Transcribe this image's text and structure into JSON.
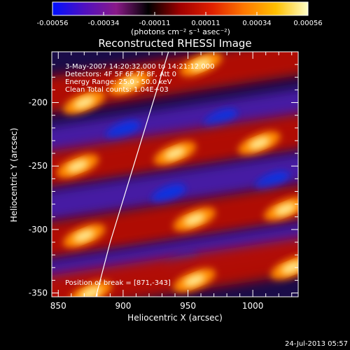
{
  "chart_data": {
    "type": "heatmap",
    "title": "Reconstructed RHESSI Image",
    "xlabel": "Heliocentric X (arcsec)",
    "ylabel": "Heliocentric Y (arcsec)",
    "xlim": [
      845,
      1035
    ],
    "ylim": [
      -353,
      -160
    ],
    "x_ticks": [
      850,
      900,
      950,
      1000
    ],
    "y_ticks": [
      -200,
      -250,
      -300,
      -350
    ],
    "colorbar": {
      "range": [
        -0.00056,
        0.00056
      ],
      "ticks": [
        "-0.00056",
        "-0.00034",
        "-0.00011",
        "0.00011",
        "0.00034",
        "0.00056"
      ],
      "unit_label": "(photons cm⁻² s⁻¹ asec⁻²)",
      "colormap": [
        "#0010ff",
        "#5010c0",
        "#8a1a88",
        "#000000",
        "#a00000",
        "#e02000",
        "#ff7800",
        "#ffc000",
        "#ffffc8"
      ]
    },
    "annotations": [
      "3-May-2007 14:20:32.000 to 14:21:12.000",
      "Detectors: 4F 5F 6F 7F 8F, Att 0",
      "Energy Range: 25.0 - 50.0 keV",
      "Clean     Total counts: 1.04E+03"
    ],
    "limb_note": "Position of break = [871,-343]",
    "limb_curve": [
      [
        879,
        -353
      ],
      [
        890,
        -310
      ],
      [
        905,
        -260
      ],
      [
        920,
        -210
      ],
      [
        935,
        -160
      ]
    ],
    "bands": [
      {
        "y_at_850": -195,
        "kind": "positive",
        "blobs": [
          [
            870,
            -200
          ],
          [
            905,
            -185
          ],
          [
            960,
            -170
          ]
        ]
      },
      {
        "y_at_850": -232,
        "kind": "negative",
        "blobs": [
          [
            900,
            -222
          ],
          [
            975,
            -213
          ]
        ]
      },
      {
        "y_at_850": -254,
        "kind": "positive",
        "blobs": [
          [
            865,
            -250
          ],
          [
            940,
            -240
          ],
          [
            1005,
            -232
          ]
        ]
      },
      {
        "y_at_850": -283,
        "kind": "negative",
        "blobs": [
          [
            935,
            -272
          ],
          [
            1015,
            -262
          ]
        ]
      },
      {
        "y_at_850": -310,
        "kind": "positive",
        "blobs": [
          [
            870,
            -305
          ],
          [
            955,
            -292
          ],
          [
            1025,
            -284
          ]
        ]
      },
      {
        "y_at_850": -338,
        "kind": "negative",
        "blobs": [
          [
            945,
            -326
          ]
        ]
      },
      {
        "y_at_850": -352,
        "kind": "positive",
        "blobs": [
          [
            875,
            -350
          ],
          [
            955,
            -340
          ],
          [
            1030,
            -330
          ]
        ]
      }
    ],
    "band_slope": 0.18,
    "grid": false
  },
  "footer": {
    "timestamp": "24-Jul-2013 05:57"
  }
}
